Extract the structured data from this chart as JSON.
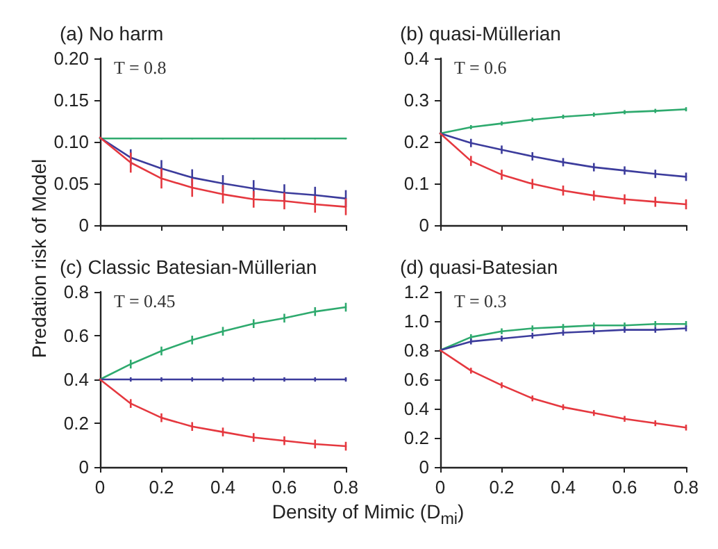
{
  "chart_data": [
    {
      "type": "line",
      "title": "(a) No harm",
      "annotations": [
        "T = 0.8"
      ],
      "x": [
        0,
        0.1,
        0.2,
        0.3,
        0.4,
        0.5,
        0.6,
        0.7,
        0.8
      ],
      "xlim": [
        0,
        0.8
      ],
      "xticks": [
        0,
        0.2,
        0.4,
        0.6,
        0.8
      ],
      "ylim": [
        0,
        0.2
      ],
      "yticks": [
        0,
        0.05,
        {
          "value": 0.1,
          "label": "0.10"
        },
        0.15,
        {
          "value": 0.2,
          "label": "0.20"
        }
      ],
      "tick_labels": "y",
      "grid": false,
      "marker": "none",
      "series": [
        {
          "color": "#2eaa6e",
          "values": [
            0.104,
            0.104,
            0.104,
            0.104,
            0.104,
            0.104,
            0.104,
            0.104,
            0.104
          ],
          "errors": [
            null,
            0.001,
            0.001,
            0.001,
            0.001,
            0.001,
            0.001,
            0.001,
            0.001
          ]
        },
        {
          "color": "#3c3c9c",
          "values": [
            0.105,
            0.081,
            0.068,
            0.057,
            0.05,
            0.044,
            0.039,
            0.036,
            0.032
          ],
          "errors": [
            null,
            0.01,
            0.01,
            0.01,
            0.01,
            0.01,
            0.01,
            0.01,
            0.01
          ]
        },
        {
          "color": "#e5383f",
          "values": [
            0.105,
            0.075,
            0.056,
            0.045,
            0.037,
            0.031,
            0.029,
            0.025,
            0.022
          ],
          "errors": [
            null,
            0.012,
            0.012,
            0.011,
            0.011,
            0.01,
            0.01,
            0.01,
            0.01
          ]
        }
      ]
    },
    {
      "type": "line",
      "title": "(b) quasi-Müllerian",
      "annotations": [
        "T = 0.6"
      ],
      "x": [
        0,
        0.1,
        0.2,
        0.3,
        0.4,
        0.5,
        0.6,
        0.7,
        0.8
      ],
      "xlim": [
        0,
        0.8
      ],
      "xticks": [
        0,
        0.2,
        0.4,
        0.6,
        0.8
      ],
      "ylim": [
        0,
        0.4
      ],
      "yticks": [
        0,
        0.1,
        0.2,
        0.3,
        0.4
      ],
      "tick_labels": "y",
      "grid": false,
      "marker": "none",
      "series": [
        {
          "color": "#2eaa6e",
          "values": [
            0.22,
            0.235,
            0.244,
            0.253,
            0.26,
            0.265,
            0.271,
            0.274,
            0.278
          ],
          "errors": [
            null,
            0.005,
            0.005,
            0.005,
            0.005,
            0.005,
            0.005,
            0.005,
            0.005
          ]
        },
        {
          "color": "#3c3c9c",
          "values": [
            0.22,
            0.197,
            0.181,
            0.165,
            0.151,
            0.139,
            0.131,
            0.123,
            0.116
          ],
          "errors": [
            null,
            0.01,
            0.01,
            0.01,
            0.01,
            0.01,
            0.01,
            0.01,
            0.01
          ]
        },
        {
          "color": "#e5383f",
          "values": [
            0.22,
            0.154,
            0.121,
            0.099,
            0.083,
            0.071,
            0.062,
            0.056,
            0.05
          ],
          "errors": [
            null,
            0.012,
            0.012,
            0.012,
            0.012,
            0.012,
            0.012,
            0.012,
            0.012
          ]
        }
      ]
    },
    {
      "type": "line",
      "title": "(c) Classic Batesian-Müllerian",
      "annotations": [
        "T = 0.45"
      ],
      "ylabel": "Predation risk of Model",
      "x": [
        0,
        0.1,
        0.2,
        0.3,
        0.4,
        0.5,
        0.6,
        0.7,
        0.8
      ],
      "xlim": [
        0,
        0.8
      ],
      "xticks": [
        0,
        0.2,
        0.4,
        0.6,
        0.8
      ],
      "ylim": [
        0,
        0.8
      ],
      "yticks": [
        0,
        0.2,
        0.4,
        0.6,
        0.8
      ],
      "grid": false,
      "marker": "none",
      "series": [
        {
          "color": "#2eaa6e",
          "values": [
            0.4,
            0.47,
            0.53,
            0.58,
            0.62,
            0.655,
            0.68,
            0.71,
            0.73
          ],
          "errors": [
            null,
            0.02,
            0.02,
            0.02,
            0.02,
            0.02,
            0.02,
            0.02,
            0.02
          ]
        },
        {
          "color": "#3c3c9c",
          "values": [
            0.4,
            0.4,
            0.4,
            0.4,
            0.4,
            0.4,
            0.4,
            0.4,
            0.4
          ],
          "errors": [
            null,
            0.01,
            0.01,
            0.01,
            0.01,
            0.01,
            0.01,
            0.01,
            0.01
          ]
        },
        {
          "color": "#e5383f",
          "values": [
            0.4,
            0.29,
            0.225,
            0.185,
            0.16,
            0.135,
            0.12,
            0.105,
            0.095
          ],
          "errors": [
            null,
            0.02,
            0.02,
            0.02,
            0.02,
            0.02,
            0.02,
            0.02,
            0.02
          ]
        }
      ]
    },
    {
      "type": "line",
      "title": "(d) quasi-Batesian",
      "annotations": [
        "T = 0.3"
      ],
      "xlabel": "Density of Mimic (D$_{mi}$)",
      "x": [
        0,
        0.1,
        0.2,
        0.3,
        0.4,
        0.5,
        0.6,
        0.7,
        0.8
      ],
      "xlim": [
        0,
        0.8
      ],
      "xticks": [
        0,
        0.2,
        0.4,
        0.6,
        0.8
      ],
      "ylim": [
        0,
        1.2
      ],
      "yticks": [
        0,
        0.2,
        0.4,
        0.6,
        0.8,
        {
          "value": 1,
          "label": "1.0"
        },
        1.2
      ],
      "grid": false,
      "marker": "none",
      "series": [
        {
          "color": "#2eaa6e",
          "values": [
            0.8,
            0.89,
            0.93,
            0.95,
            0.96,
            0.97,
            0.97,
            0.98,
            0.98
          ],
          "errors": [
            null,
            0.02,
            0.02,
            0.02,
            0.02,
            0.02,
            0.02,
            0.02,
            0.02
          ]
        },
        {
          "color": "#3c3c9c",
          "values": [
            0.8,
            0.86,
            0.88,
            0.9,
            0.92,
            0.93,
            0.94,
            0.94,
            0.95
          ],
          "errors": [
            null,
            0.02,
            0.02,
            0.02,
            0.02,
            0.02,
            0.02,
            0.02,
            0.02
          ]
        },
        {
          "color": "#e5383f",
          "values": [
            0.8,
            0.66,
            0.56,
            0.47,
            0.41,
            0.37,
            0.33,
            0.3,
            0.27
          ],
          "errors": [
            null,
            0.02,
            0.02,
            0.02,
            0.02,
            0.02,
            0.02,
            0.02,
            0.02
          ]
        }
      ]
    }
  ]
}
